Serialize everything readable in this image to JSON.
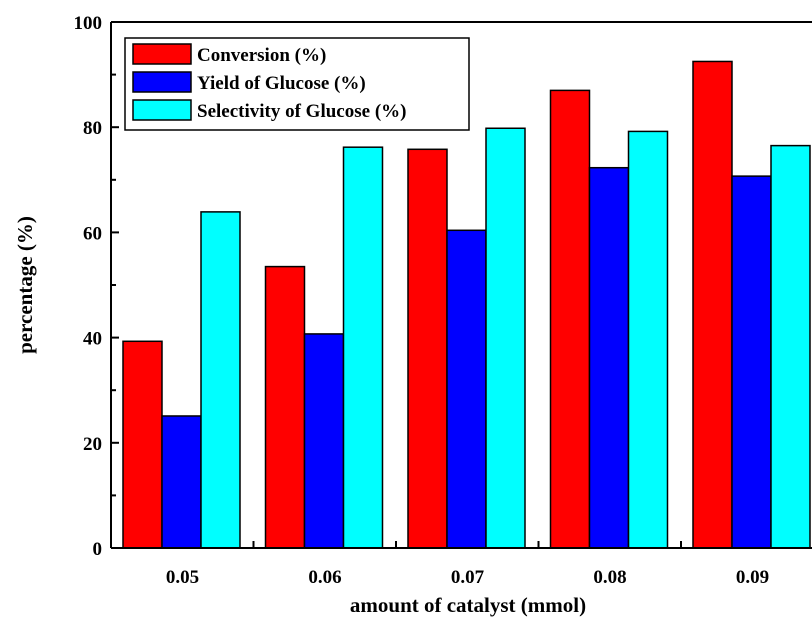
{
  "chart_data": {
    "type": "bar",
    "xlabel": "amount of catalyst (mmol)",
    "ylabel": "percentage (%)",
    "categories": [
      "0.05",
      "0.06",
      "0.07",
      "0.08",
      "0.09"
    ],
    "ylim": [
      0,
      100
    ],
    "yticks": [
      "0",
      "20",
      "40",
      "60",
      "80",
      "100"
    ],
    "legend_position": "top-left",
    "grid": false,
    "series": [
      {
        "name": "Conversion (%)",
        "color": "#ff0000",
        "values": [
          39.3,
          53.5,
          75.8,
          87.0,
          92.5
        ]
      },
      {
        "name": "Yield of Glucose (%)",
        "color": "#0000ff",
        "values": [
          25.1,
          40.7,
          60.4,
          72.3,
          70.7
        ]
      },
      {
        "name": "Selectivity of Glucose (%)",
        "color": "#00ffff",
        "values": [
          63.9,
          76.2,
          79.8,
          79.2,
          76.5
        ]
      }
    ]
  }
}
